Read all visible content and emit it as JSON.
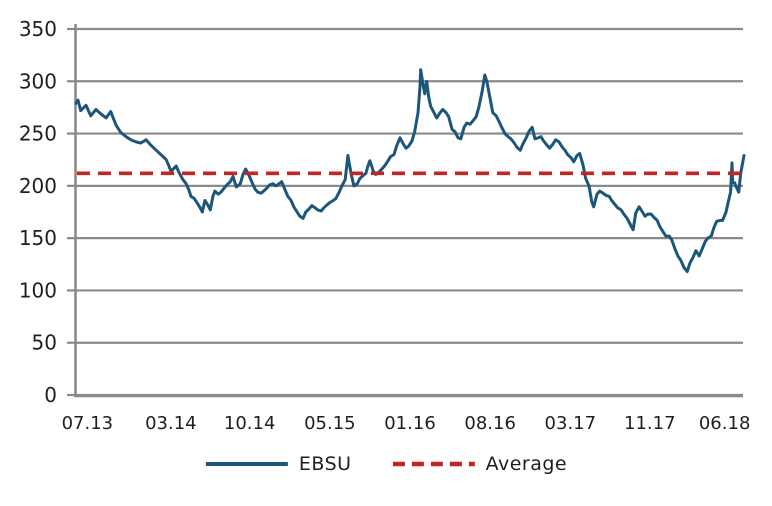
{
  "page": {
    "background": "#ffffff"
  },
  "chart_data": {
    "type": "line",
    "title": "",
    "xlabel": "",
    "ylabel": "",
    "grid": true,
    "colors": {
      "series_line": "#1C5679",
      "average_line": "#C42524",
      "gridline": "#8A8A8A",
      "axis": "#8A8A8A",
      "text": "#1F1F1F"
    },
    "y_axis": {
      "min": 0,
      "max": 350,
      "step": 50,
      "ticks": [
        0,
        50,
        100,
        150,
        200,
        250,
        300,
        350
      ]
    },
    "x_ticks": [
      {
        "label": "07.13",
        "pos": 0.017
      },
      {
        "label": "03.14",
        "pos": 0.142
      },
      {
        "label": "10.14",
        "pos": 0.26
      },
      {
        "label": "05.15",
        "pos": 0.38
      },
      {
        "label": "01.16",
        "pos": 0.5
      },
      {
        "label": "08.16",
        "pos": 0.62
      },
      {
        "label": "03.17",
        "pos": 0.74
      },
      {
        "label": "11.17",
        "pos": 0.859
      },
      {
        "label": "06.18",
        "pos": 0.971
      }
    ],
    "series": [
      {
        "name": "EBSU",
        "color": "#1C5679",
        "points": [
          [
            0.0,
            279
          ],
          [
            0.003,
            282
          ],
          [
            0.007,
            272
          ],
          [
            0.015,
            277
          ],
          [
            0.022,
            267
          ],
          [
            0.03,
            273
          ],
          [
            0.037,
            269
          ],
          [
            0.045,
            265
          ],
          [
            0.052,
            271
          ],
          [
            0.06,
            258
          ],
          [
            0.067,
            251
          ],
          [
            0.075,
            247
          ],
          [
            0.082,
            244
          ],
          [
            0.09,
            242
          ],
          [
            0.097,
            241
          ],
          [
            0.105,
            244
          ],
          [
            0.112,
            239
          ],
          [
            0.12,
            234
          ],
          [
            0.127,
            230
          ],
          [
            0.135,
            225
          ],
          [
            0.139,
            219
          ],
          [
            0.142,
            214
          ],
          [
            0.147,
            217
          ],
          [
            0.15,
            219
          ],
          [
            0.154,
            213
          ],
          [
            0.16,
            206
          ],
          [
            0.165,
            202
          ],
          [
            0.169,
            196
          ],
          [
            0.172,
            190
          ],
          [
            0.177,
            188
          ],
          [
            0.181,
            184
          ],
          [
            0.186,
            179
          ],
          [
            0.189,
            175
          ],
          [
            0.193,
            186
          ],
          [
            0.198,
            181
          ],
          [
            0.201,
            177
          ],
          [
            0.205,
            190
          ],
          [
            0.208,
            195
          ],
          [
            0.213,
            192
          ],
          [
            0.217,
            194
          ],
          [
            0.222,
            198
          ],
          [
            0.226,
            201
          ],
          [
            0.231,
            204
          ],
          [
            0.235,
            209
          ],
          [
            0.24,
            199
          ],
          [
            0.246,
            202
          ],
          [
            0.25,
            211
          ],
          [
            0.254,
            216
          ],
          [
            0.259,
            210
          ],
          [
            0.263,
            204
          ],
          [
            0.268,
            197
          ],
          [
            0.272,
            194
          ],
          [
            0.277,
            193
          ],
          [
            0.281,
            195
          ],
          [
            0.286,
            198
          ],
          [
            0.29,
            201
          ],
          [
            0.295,
            202
          ],
          [
            0.299,
            200
          ],
          [
            0.304,
            202
          ],
          [
            0.308,
            204
          ],
          [
            0.313,
            196
          ],
          [
            0.317,
            190
          ],
          [
            0.322,
            186
          ],
          [
            0.326,
            180
          ],
          [
            0.331,
            175
          ],
          [
            0.335,
            171
          ],
          [
            0.34,
            169
          ],
          [
            0.344,
            175
          ],
          [
            0.349,
            178
          ],
          [
            0.353,
            181
          ],
          [
            0.358,
            179
          ],
          [
            0.362,
            177
          ],
          [
            0.367,
            176
          ],
          [
            0.371,
            179
          ],
          [
            0.376,
            182
          ],
          [
            0.38,
            184
          ],
          [
            0.385,
            186
          ],
          [
            0.389,
            188
          ],
          [
            0.394,
            194
          ],
          [
            0.398,
            200
          ],
          [
            0.403,
            206
          ],
          [
            0.407,
            229
          ],
          [
            0.412,
            211
          ],
          [
            0.416,
            200
          ],
          [
            0.421,
            202
          ],
          [
            0.425,
            207
          ],
          [
            0.43,
            210
          ],
          [
            0.434,
            212
          ],
          [
            0.437,
            219
          ],
          [
            0.44,
            224
          ],
          [
            0.445,
            214
          ],
          [
            0.449,
            211
          ],
          [
            0.453,
            213
          ],
          [
            0.458,
            216
          ],
          [
            0.463,
            220
          ],
          [
            0.467,
            224
          ],
          [
            0.471,
            228
          ],
          [
            0.476,
            230
          ],
          [
            0.48,
            238
          ],
          [
            0.485,
            246
          ],
          [
            0.49,
            240
          ],
          [
            0.494,
            236
          ],
          [
            0.498,
            238
          ],
          [
            0.503,
            243
          ],
          [
            0.507,
            252
          ],
          [
            0.512,
            270
          ],
          [
            0.515,
            295
          ],
          [
            0.516,
            311
          ],
          [
            0.519,
            299
          ],
          [
            0.522,
            288
          ],
          [
            0.525,
            300
          ],
          [
            0.528,
            285
          ],
          [
            0.531,
            276
          ],
          [
            0.536,
            270
          ],
          [
            0.54,
            265
          ],
          [
            0.545,
            270
          ],
          [
            0.549,
            273
          ],
          [
            0.554,
            270
          ],
          [
            0.558,
            266
          ],
          [
            0.563,
            254
          ],
          [
            0.567,
            252
          ],
          [
            0.572,
            246
          ],
          [
            0.576,
            245
          ],
          [
            0.581,
            256
          ],
          [
            0.585,
            260
          ],
          [
            0.59,
            259
          ],
          [
            0.594,
            262
          ],
          [
            0.599,
            266
          ],
          [
            0.603,
            275
          ],
          [
            0.608,
            290
          ],
          [
            0.612,
            306
          ],
          [
            0.615,
            300
          ],
          [
            0.62,
            283
          ],
          [
            0.624,
            270
          ],
          [
            0.629,
            267
          ],
          [
            0.633,
            262
          ],
          [
            0.638,
            255
          ],
          [
            0.642,
            250
          ],
          [
            0.647,
            247
          ],
          [
            0.651,
            245
          ],
          [
            0.656,
            241
          ],
          [
            0.66,
            237
          ],
          [
            0.665,
            234
          ],
          [
            0.669,
            240
          ],
          [
            0.674,
            246
          ],
          [
            0.678,
            252
          ],
          [
            0.683,
            256
          ],
          [
            0.687,
            245
          ],
          [
            0.692,
            246
          ],
          [
            0.696,
            247
          ],
          [
            0.7,
            243
          ],
          [
            0.705,
            239
          ],
          [
            0.709,
            236
          ],
          [
            0.714,
            240
          ],
          [
            0.718,
            244
          ],
          [
            0.723,
            242
          ],
          [
            0.728,
            237
          ],
          [
            0.732,
            234
          ],
          [
            0.736,
            230
          ],
          [
            0.741,
            227
          ],
          [
            0.745,
            223
          ],
          [
            0.75,
            229
          ],
          [
            0.754,
            231
          ],
          [
            0.759,
            220
          ],
          [
            0.763,
            207
          ],
          [
            0.768,
            200
          ],
          [
            0.772,
            185
          ],
          [
            0.775,
            180
          ],
          [
            0.78,
            192
          ],
          [
            0.784,
            195
          ],
          [
            0.789,
            193
          ],
          [
            0.793,
            191
          ],
          [
            0.798,
            190
          ],
          [
            0.802,
            186
          ],
          [
            0.807,
            182
          ],
          [
            0.811,
            179
          ],
          [
            0.816,
            177
          ],
          [
            0.82,
            173
          ],
          [
            0.825,
            169
          ],
          [
            0.829,
            164
          ],
          [
            0.834,
            158
          ],
          [
            0.838,
            174
          ],
          [
            0.843,
            180
          ],
          [
            0.847,
            176
          ],
          [
            0.852,
            171
          ],
          [
            0.856,
            173
          ],
          [
            0.861,
            173
          ],
          [
            0.865,
            170
          ],
          [
            0.87,
            167
          ],
          [
            0.874,
            161
          ],
          [
            0.879,
            156
          ],
          [
            0.883,
            152
          ],
          [
            0.888,
            152
          ],
          [
            0.892,
            148
          ],
          [
            0.897,
            139
          ],
          [
            0.901,
            133
          ],
          [
            0.906,
            128
          ],
          [
            0.91,
            122
          ],
          [
            0.915,
            118
          ],
          [
            0.919,
            126
          ],
          [
            0.924,
            132
          ],
          [
            0.928,
            138
          ],
          [
            0.933,
            133
          ],
          [
            0.937,
            139
          ],
          [
            0.942,
            147
          ],
          [
            0.946,
            150
          ],
          [
            0.951,
            152
          ],
          [
            0.955,
            160
          ],
          [
            0.959,
            166
          ],
          [
            0.964,
            167
          ],
          [
            0.968,
            167
          ],
          [
            0.973,
            175
          ],
          [
            0.977,
            186
          ],
          [
            0.98,
            194
          ],
          [
            0.982,
            222
          ],
          [
            0.983,
            203
          ],
          [
            0.986,
            203
          ],
          [
            0.989,
            198
          ],
          [
            0.992,
            194
          ],
          [
            0.995,
            212
          ],
          [
            1.0,
            229
          ]
        ]
      }
    ],
    "average": {
      "label": "Average",
      "value": 212,
      "color": "#C42524",
      "style": "dashed"
    },
    "legend_position": "bottom-center"
  }
}
